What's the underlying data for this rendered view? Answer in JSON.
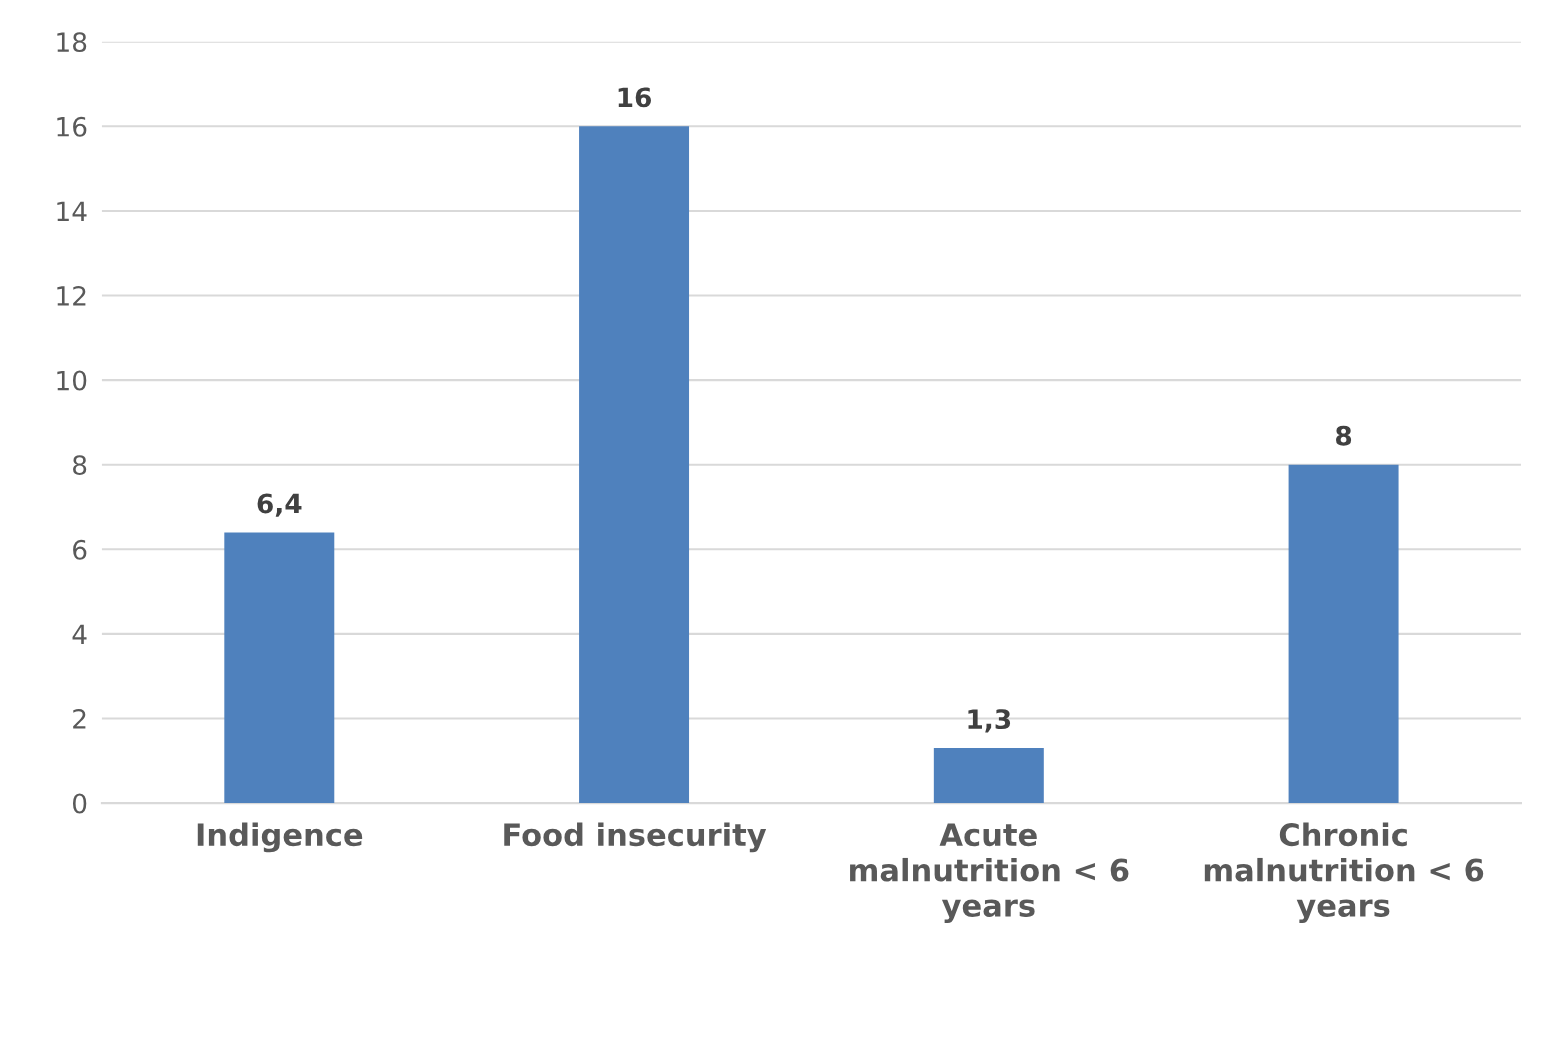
{
  "chart_data": {
    "type": "bar",
    "categories": [
      "Indigence",
      "Food insecurity",
      "Acute\nmalnutrition < 6\nyears",
      "Chronic\nmalnutrition < 6\nyears"
    ],
    "values": [
      6.4,
      16,
      1.3,
      8
    ],
    "value_labels": [
      "6,4",
      "16",
      "1,3",
      "8"
    ],
    "color": "#4f81bd",
    "ylim": [
      0,
      18
    ],
    "yticks": [
      0,
      2,
      4,
      6,
      8,
      10,
      12,
      14,
      16,
      18
    ],
    "grid": "y",
    "legend": false
  }
}
